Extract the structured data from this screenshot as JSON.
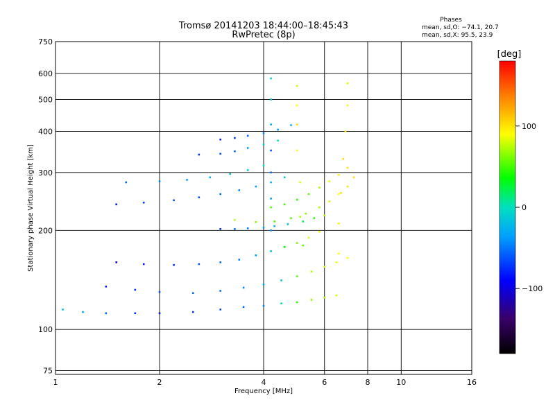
{
  "chart_data": {
    "type": "scatter",
    "title": "Tromsø 20141203 18:44:00–18:45:43",
    "subtitle": "RwPretec (8p)",
    "xlabel": "Frequency [MHz]",
    "ylabel": "Stationary phase Virtual Height [km]",
    "x_scale": "log",
    "y_scale": "log",
    "xlim": [
      1,
      16
    ],
    "ylim": [
      73,
      750
    ],
    "x_ticks": [
      "1",
      "2",
      "4",
      "6",
      "8",
      "10",
      "16"
    ],
    "x_tick_values": [
      1,
      2,
      4,
      6,
      8,
      10,
      16
    ],
    "y_ticks": [
      "75",
      "100",
      "200",
      "300",
      "400",
      "500",
      "600",
      "750"
    ],
    "y_tick_values": [
      75,
      100,
      200,
      300,
      400,
      500,
      600,
      750
    ],
    "grid": true,
    "phases_box": {
      "title": "Phases",
      "line_o": "mean, sd,O: −74.1, 20.7",
      "line_x": "mean, sd,X:  95.5, 23.9"
    },
    "colorbar": {
      "label": "[deg]",
      "ticks": [
        "100",
        "0",
        "−100"
      ],
      "tick_values": [
        100,
        0,
        -100
      ],
      "range": [
        -180,
        180
      ]
    },
    "traces": [
      {
        "points": [
          [
            1.05,
            115,
            -20
          ],
          [
            1.2,
            113,
            -40
          ],
          [
            1.4,
            112,
            -60
          ],
          [
            1.7,
            112,
            -80
          ],
          [
            2.0,
            112,
            -90
          ],
          [
            2.5,
            113,
            -80
          ],
          [
            3.0,
            115,
            -70
          ],
          [
            3.5,
            117,
            -60
          ],
          [
            4.0,
            118,
            -50
          ],
          [
            4.5,
            120,
            0
          ],
          [
            5.0,
            121,
            50
          ],
          [
            5.5,
            123,
            70
          ],
          [
            6.0,
            125,
            80
          ],
          [
            6.5,
            127,
            90
          ]
        ]
      },
      {
        "points": [
          [
            1.4,
            135,
            -90
          ],
          [
            1.7,
            132,
            -80
          ],
          [
            2.0,
            130,
            -70
          ],
          [
            2.5,
            129,
            -60
          ],
          [
            3.0,
            131,
            -60
          ],
          [
            3.5,
            134,
            -50
          ],
          [
            4.0,
            137,
            -40
          ],
          [
            4.5,
            141,
            -20
          ],
          [
            5.0,
            145,
            60
          ],
          [
            5.5,
            150,
            80
          ],
          [
            6.0,
            155,
            90
          ],
          [
            6.5,
            160,
            95
          ],
          [
            7.0,
            165,
            100
          ]
        ]
      },
      {
        "points": [
          [
            1.5,
            160,
            -110
          ],
          [
            1.8,
            158,
            -90
          ],
          [
            2.2,
            157,
            -80
          ],
          [
            2.6,
            158,
            -70
          ],
          [
            3.0,
            160,
            -60
          ],
          [
            3.4,
            163,
            -50
          ],
          [
            3.8,
            168,
            -40
          ],
          [
            4.2,
            173,
            -20
          ],
          [
            4.6,
            178,
            40
          ],
          [
            5.0,
            183,
            70
          ],
          [
            5.4,
            190,
            90
          ],
          [
            5.8,
            198,
            100
          ]
        ]
      },
      {
        "points": [
          [
            3.0,
            202,
            -80
          ],
          [
            3.3,
            202,
            -60
          ],
          [
            3.6,
            203,
            -50
          ],
          [
            4.0,
            204,
            -40
          ],
          [
            4.3,
            206,
            -30
          ],
          [
            4.7,
            209,
            -20
          ],
          [
            5.2,
            213,
            20
          ],
          [
            5.6,
            218,
            50
          ],
          [
            6.0,
            222,
            80
          ]
        ]
      },
      {
        "points": [
          [
            3.3,
            215,
            80
          ],
          [
            3.8,
            212,
            70
          ],
          [
            4.3,
            213,
            60
          ],
          [
            4.8,
            218,
            60
          ],
          [
            5.3,
            225,
            70
          ],
          [
            5.8,
            235,
            80
          ],
          [
            6.2,
            245,
            90
          ],
          [
            6.6,
            258,
            100
          ],
          [
            7.0,
            272,
            110
          ],
          [
            7.3,
            290,
            110
          ]
        ]
      },
      {
        "points": [
          [
            4.2,
            235,
            60
          ],
          [
            4.6,
            240,
            55
          ],
          [
            5.0,
            248,
            50
          ],
          [
            5.4,
            258,
            60
          ],
          [
            5.8,
            270,
            80
          ],
          [
            6.2,
            282,
            95
          ],
          [
            6.6,
            295,
            105
          ],
          [
            7.0,
            310,
            110
          ]
        ]
      },
      {
        "points": [
          [
            1.5,
            240,
            -90
          ],
          [
            1.8,
            243,
            -80
          ],
          [
            2.2,
            247,
            -70
          ],
          [
            2.6,
            252,
            -70
          ],
          [
            3.0,
            258,
            -60
          ],
          [
            3.4,
            265,
            -50
          ],
          [
            3.8,
            272,
            -40
          ],
          [
            4.2,
            280,
            -30
          ],
          [
            4.6,
            290,
            -20
          ]
        ]
      },
      {
        "points": [
          [
            1.6,
            280,
            -60
          ],
          [
            2.0,
            282,
            -50
          ],
          [
            2.4,
            285,
            -40
          ],
          [
            2.8,
            290,
            -30
          ],
          [
            3.2,
            297,
            -20
          ],
          [
            3.6,
            305,
            -10
          ],
          [
            4.0,
            315,
            0
          ]
        ]
      },
      {
        "points": [
          [
            2.6,
            340,
            -80
          ],
          [
            3.0,
            342,
            -70
          ],
          [
            3.3,
            348,
            -60
          ],
          [
            3.6,
            356,
            -40
          ],
          [
            4.0,
            365,
            -20
          ],
          [
            4.4,
            375,
            0
          ]
        ]
      },
      {
        "points": [
          [
            3.0,
            378,
            -90
          ],
          [
            3.3,
            382,
            -80
          ],
          [
            3.6,
            388,
            -60
          ],
          [
            4.0,
            395,
            -50
          ],
          [
            4.4,
            405,
            -40
          ],
          [
            4.8,
            418,
            -30
          ]
        ]
      },
      {
        "points": [
          [
            4.2,
            200,
            -50
          ],
          [
            4.2,
            250,
            -40
          ],
          [
            4.2,
            300,
            -60
          ],
          [
            4.2,
            350,
            -70
          ],
          [
            4.2,
            420,
            -30
          ],
          [
            4.2,
            500,
            -20
          ],
          [
            4.2,
            580,
            -10
          ]
        ]
      },
      {
        "points": [
          [
            5.2,
            180,
            60
          ],
          [
            5.1,
            220,
            80
          ],
          [
            5.1,
            280,
            90
          ],
          [
            5.0,
            350,
            100
          ],
          [
            5.0,
            420,
            110
          ],
          [
            5.0,
            480,
            100
          ],
          [
            5.0,
            550,
            90
          ]
        ]
      },
      {
        "points": [
          [
            6.6,
            170,
            100
          ],
          [
            6.6,
            210,
            105
          ],
          [
            6.7,
            260,
            110
          ],
          [
            6.8,
            330,
            110
          ],
          [
            6.9,
            400,
            105
          ],
          [
            7.0,
            480,
            100
          ],
          [
            7.0,
            560,
            90
          ]
        ]
      }
    ]
  }
}
